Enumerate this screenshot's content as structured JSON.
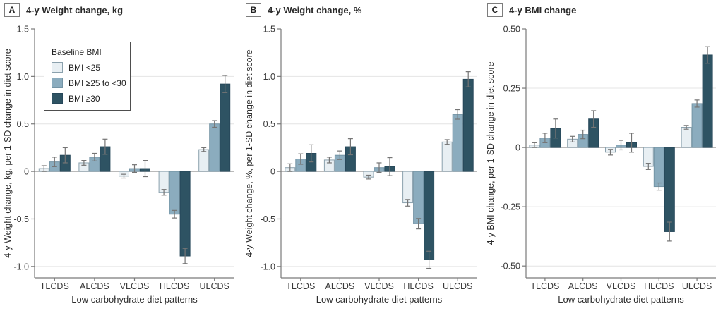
{
  "figure": {
    "x_axis_title": "Low carbohydrate diet patterns",
    "categories": [
      "TLCDS",
      "ALCDS",
      "VLCDS",
      "HLCDS",
      "ULCDS"
    ],
    "legend": {
      "title": "Baseline BMI",
      "items": [
        {
          "label": "BMI <25",
          "fill": "#e8eff3",
          "stroke": "#8ba1ad"
        },
        {
          "label": "BMI ≥25 to <30",
          "fill": "#8bacbe",
          "stroke": "#7494a5"
        },
        {
          "label": "BMI ≥30",
          "fill": "#2e5363",
          "stroke": "#27485a"
        }
      ]
    },
    "colors": {
      "axis": "#7a7a7a",
      "gridline": "#e4e4e4",
      "zero_line": "#a3a3a3",
      "error_bar": "#757575",
      "tick_text": "#3a3a3a",
      "label_text": "#2d2d2d",
      "background": "#ffffff"
    }
  },
  "chart_data": [
    {
      "panel": "A",
      "type": "bar",
      "title": "4-y Weight change, kg",
      "ylabel": "4-y Weight change, kg, per 1-SD change in diet score",
      "xlabel": "Low carbohydrate diet patterns",
      "categories": [
        "TLCDS",
        "ALCDS",
        "VLCDS",
        "HLCDS",
        "ULCDS"
      ],
      "ylim": [
        -1.12,
        1.5
      ],
      "yticks": [
        1.5,
        1.0,
        0.5,
        0,
        -0.5,
        -1.0
      ],
      "ytick_labels": [
        "1.5",
        "1.0",
        "0.5",
        "0",
        "-0.5",
        "-1.0"
      ],
      "grid": true,
      "legend_position": "upper-left",
      "series": [
        {
          "name": "BMI <25",
          "values": [
            0.03,
            0.09,
            -0.05,
            -0.22,
            0.23
          ],
          "errors": [
            0.03,
            0.025,
            0.02,
            0.03,
            0.02
          ]
        },
        {
          "name": "BMI ≥25 to <30",
          "values": [
            0.1,
            0.15,
            0.03,
            -0.45,
            0.5
          ],
          "errors": [
            0.05,
            0.04,
            0.04,
            0.04,
            0.035
          ]
        },
        {
          "name": "BMI ≥30",
          "values": [
            0.17,
            0.26,
            0.03,
            -0.89,
            0.92
          ],
          "errors": [
            0.08,
            0.08,
            0.085,
            0.08,
            0.09
          ]
        }
      ]
    },
    {
      "panel": "B",
      "type": "bar",
      "title": "4-y Weight change, %",
      "ylabel": "4-y Weight change, %, per 1-SD change in diet score",
      "xlabel": "Low carbohydrate diet patterns",
      "categories": [
        "TLCDS",
        "ALCDS",
        "VLCDS",
        "HLCDS",
        "ULCDS"
      ],
      "ylim": [
        -1.12,
        1.5
      ],
      "yticks": [
        1.5,
        1.0,
        0.5,
        0,
        -0.5,
        -1.0
      ],
      "ytick_labels": [
        "1.5",
        "1.0",
        "0.5",
        "0",
        "-0.5",
        "-1.0"
      ],
      "grid": true,
      "legend_position": "none",
      "series": [
        {
          "name": "BMI <25",
          "values": [
            0.04,
            0.12,
            -0.06,
            -0.33,
            0.31
          ],
          "errors": [
            0.04,
            0.03,
            0.02,
            0.035,
            0.025
          ]
        },
        {
          "name": "BMI ≥25 to <30",
          "values": [
            0.13,
            0.17,
            0.04,
            -0.55,
            0.6
          ],
          "errors": [
            0.055,
            0.045,
            0.05,
            0.055,
            0.05
          ]
        },
        {
          "name": "BMI ≥30",
          "values": [
            0.19,
            0.26,
            0.05,
            -0.93,
            0.97
          ],
          "errors": [
            0.09,
            0.085,
            0.095,
            0.09,
            0.08
          ]
        }
      ]
    },
    {
      "panel": "C",
      "type": "bar",
      "title": "4-y BMI change",
      "ylabel": "4-y BMI change, per 1-SD change in diet score",
      "xlabel": "Low carbohydrate diet patterns",
      "categories": [
        "TLCDS",
        "ALCDS",
        "VLCDS",
        "HLCDS",
        "ULCDS"
      ],
      "ylim": [
        -0.55,
        0.5
      ],
      "yticks": [
        0.5,
        0.25,
        0,
        -0.25,
        -0.5
      ],
      "ytick_labels": [
        "0.50",
        "0.25",
        "0",
        "-0.25",
        "-0.50"
      ],
      "grid": true,
      "legend_position": "none",
      "series": [
        {
          "name": "BMI <25",
          "values": [
            0.01,
            0.035,
            -0.02,
            -0.08,
            0.085
          ],
          "errors": [
            0.01,
            0.012,
            0.012,
            0.013,
            0.008
          ]
        },
        {
          "name": "BMI ≥25 to <30",
          "values": [
            0.04,
            0.055,
            0.01,
            -0.165,
            0.185
          ],
          "errors": [
            0.02,
            0.018,
            0.02,
            0.015,
            0.015
          ]
        },
        {
          "name": "BMI ≥30",
          "values": [
            0.08,
            0.12,
            0.02,
            -0.355,
            0.39
          ],
          "errors": [
            0.04,
            0.035,
            0.04,
            0.04,
            0.035
          ]
        }
      ]
    }
  ]
}
